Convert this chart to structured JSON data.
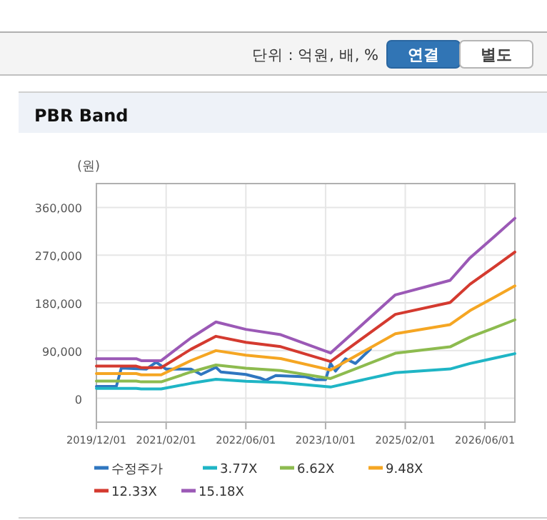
{
  "chart_data": {
    "type": "line",
    "title": "PBR Band",
    "ylabel": "(원)",
    "annotations": [
      "단위 : 억원, 배, %",
      "연결",
      "별도"
    ],
    "xlim": [
      "2019-12-01",
      "2026-12-01"
    ],
    "xticks": [
      {
        "value": "2019-12-01",
        "label": "2019/12/01"
      },
      {
        "value": "2021-02-01",
        "label": "2021/02/01"
      },
      {
        "value": "2022-06-01",
        "label": "2022/06/01"
      },
      {
        "value": "2023-10-01",
        "label": "2023/10/01"
      },
      {
        "value": "2025-02-01",
        "label": "2025/02/01"
      },
      {
        "value": "2026-06-01",
        "label": "2026/06/01"
      }
    ],
    "ylim": [
      -45000,
      405000
    ],
    "yticks": [
      {
        "value": 0,
        "label": "0"
      },
      {
        "value": 90000,
        "label": "90,000"
      },
      {
        "value": 180000,
        "label": "180,000"
      },
      {
        "value": 270000,
        "label": "270,000"
      },
      {
        "value": 360000,
        "label": "360,000"
      }
    ],
    "grid": true,
    "legend": "bottom",
    "marker": "none",
    "line_style": "solid",
    "series": [
      {
        "name": "수정주가",
        "color": "#2f76c0",
        "x": [
          "2019-12",
          "2020-04",
          "2020-05",
          "2020-10",
          "2020-12",
          "2021-02",
          "2021-07",
          "2021-09",
          "2021-12",
          "2022-01",
          "2022-06",
          "2022-09",
          "2022-10",
          "2022-12",
          "2023-06",
          "2023-08",
          "2023-10",
          "2023-11",
          "2023-12",
          "2024-02",
          "2024-04",
          "2024-07"
        ],
        "values": [
          22400,
          22400,
          57000,
          55000,
          68000,
          55000,
          55000,
          45000,
          58400,
          49500,
          45000,
          37800,
          34000,
          43000,
          40500,
          35000,
          35000,
          65700,
          51300,
          74600,
          65700,
          92700
        ]
      },
      {
        "name": "3.77X",
        "color": "#1fb5c5",
        "x": [
          "2019-12",
          "2020-08",
          "2020-09",
          "2021-01",
          "2021-07",
          "2021-12",
          "2022-06",
          "2023-01",
          "2023-11",
          "2024-12",
          "2025-11",
          "2026-03",
          "2026-08",
          "2026-12"
        ],
        "values": [
          18500,
          18500,
          17600,
          17600,
          28300,
          35700,
          32200,
          29800,
          21200,
          48400,
          55200,
          65700,
          75900,
          84200
        ]
      },
      {
        "name": "6.62X",
        "color": "#8dbb4f",
        "x": [
          "2019-12",
          "2020-08",
          "2020-09",
          "2021-01",
          "2021-07",
          "2021-12",
          "2022-06",
          "2023-01",
          "2023-11",
          "2024-12",
          "2025-11",
          "2026-03",
          "2026-08",
          "2026-12"
        ],
        "values": [
          32500,
          32500,
          31000,
          31000,
          49700,
          62800,
          56700,
          52300,
          37200,
          85000,
          97000,
          115500,
          133400,
          148000
        ]
      },
      {
        "name": "9.48X",
        "color": "#f5a623",
        "x": [
          "2019-12",
          "2020-08",
          "2020-09",
          "2021-01",
          "2021-07",
          "2021-12",
          "2022-06",
          "2023-01",
          "2023-11",
          "2024-12",
          "2025-11",
          "2026-03",
          "2026-08",
          "2026-12"
        ],
        "values": [
          46600,
          46600,
          44300,
          44300,
          71200,
          89900,
          81200,
          74900,
          53300,
          121800,
          139000,
          165500,
          191100,
          212000
        ]
      },
      {
        "name": "12.33X",
        "color": "#d43a2f",
        "x": [
          "2019-12",
          "2020-08",
          "2020-09",
          "2021-01",
          "2021-07",
          "2021-12",
          "2022-06",
          "2023-01",
          "2023-11",
          "2024-12",
          "2025-11",
          "2026-03",
          "2026-08",
          "2026-12"
        ],
        "values": [
          60600,
          60600,
          57700,
          57700,
          92600,
          116900,
          105600,
          97400,
          69400,
          158300,
          180700,
          215200,
          248500,
          275700
        ]
      },
      {
        "name": "15.18X",
        "color": "#9b59b6",
        "x": [
          "2019-12",
          "2020-08",
          "2020-09",
          "2021-01",
          "2021-07",
          "2021-12",
          "2022-06",
          "2023-01",
          "2023-11",
          "2024-12",
          "2025-11",
          "2026-03",
          "2026-08",
          "2026-12"
        ],
        "values": [
          74600,
          74600,
          71000,
          71000,
          114000,
          144000,
          130000,
          120000,
          85400,
          195000,
          222500,
          265000,
          306000,
          339500
        ]
      }
    ]
  }
}
